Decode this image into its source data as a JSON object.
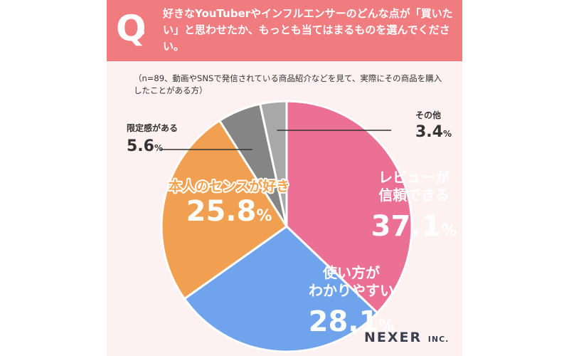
{
  "header": {
    "q_mark": "Q",
    "question": "好きなYouTuberやインフルエンサーのどんな点が「買いたい」と思わせたか、もっとも当てはまるものを選んでください。"
  },
  "note": "（n=89、動画やSNSで発信されている商品紹介などを見て、実際にその商品を購入したことがある方）",
  "chart_data": {
    "type": "pie",
    "slices": [
      {
        "label_lines": [
          "レビューが",
          "信頼できる"
        ],
        "value": 37.1,
        "value_text": "37.1",
        "color": "#ec6f96"
      },
      {
        "label_lines": [
          "使い方が",
          "わかりやすい"
        ],
        "value": 28.1,
        "value_text": "28.1",
        "color": "#6fa3ec"
      },
      {
        "label_lines": [
          "本人のセンスが好き"
        ],
        "value": 25.8,
        "value_text": "25.8",
        "color": "#f0a050"
      },
      {
        "label_lines": [
          "限定感がある"
        ],
        "value": 5.6,
        "value_text": "5.6",
        "color": "#858585"
      },
      {
        "label_lines": [
          "その他"
        ],
        "value": 3.4,
        "value_text": "3.4",
        "color": "#a8a8a8"
      }
    ],
    "unit": "%",
    "start_angle": "top",
    "direction": "clockwise"
  },
  "logo": {
    "name": "NEXER",
    "suffix": "INC."
  }
}
